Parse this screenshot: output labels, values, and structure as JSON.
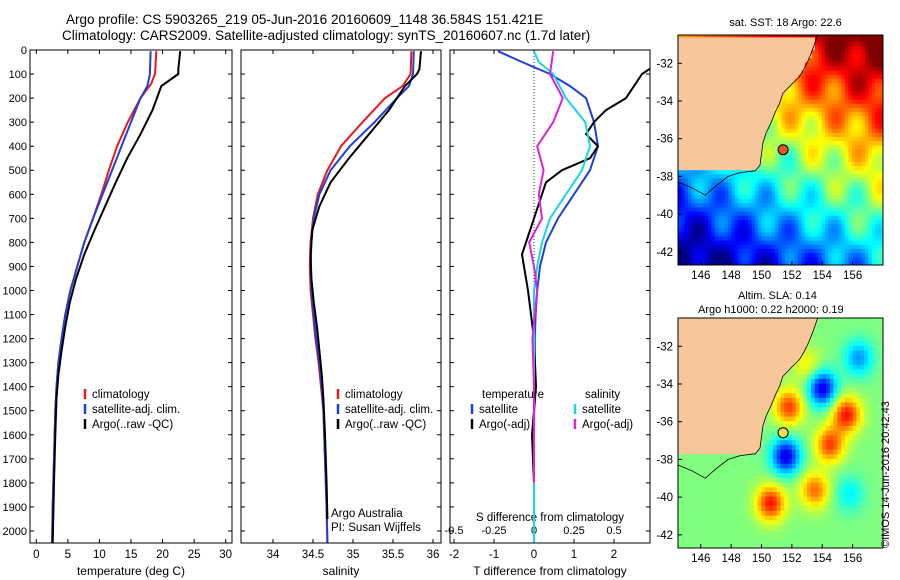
{
  "header": {
    "line1": "Argo profile: CS 5903265_219 05-Jun-2016 20160609_1148 36.584S 151.421E",
    "line2": "Climatology: CARS2009. Satellite-adjusted climatology: synTS_20160607.nc (1.7d later)"
  },
  "colors": {
    "climatology": "#e41a1c",
    "satellite": "#1f3fd8",
    "argo": "#000000",
    "salinity_satellite": "#17d8e0",
    "salinity_argo": "#e020e0",
    "land": "#f7c79b"
  },
  "chart_data": [
    {
      "type": "line",
      "id": "temperature",
      "xlabel": "temperature (deg C)",
      "ylabel": "",
      "xlim": [
        -1,
        31
      ],
      "ylim": [
        2050,
        0
      ],
      "xticks": [
        "0",
        "5",
        "10",
        "15",
        "20",
        "25",
        "30"
      ],
      "yticks": [
        "0",
        "100",
        "200",
        "300",
        "400",
        "500",
        "600",
        "700",
        "800",
        "900",
        "1000",
        "1100",
        "1200",
        "1300",
        "1400",
        "1500",
        "1600",
        "1700",
        "1800",
        "1900",
        "2000"
      ],
      "legend": [
        "climatology",
        "satellite-adj. clim.",
        "Argo(..raw -QC)"
      ],
      "series": [
        {
          "name": "climatology",
          "color_key": "climatology",
          "x": [
            19.0,
            18.8,
            18.2,
            16.5,
            14.5,
            12.8,
            11.5,
            10.3,
            9.0,
            7.6,
            6.5,
            5.4,
            4.6,
            4.0,
            3.5,
            3.2,
            3.0,
            2.8,
            2.6,
            2.5
          ],
          "y": [
            5,
            100,
            140,
            200,
            300,
            400,
            500,
            600,
            700,
            800,
            900,
            1000,
            1100,
            1200,
            1300,
            1400,
            1500,
            1700,
            1900,
            2050
          ]
        },
        {
          "name": "satellite-adj. clim.",
          "color_key": "satellite",
          "x": [
            18.1,
            18.0,
            17.6,
            16.5,
            15.0,
            13.5,
            12.0,
            10.5,
            9.0,
            7.6,
            6.5,
            5.4,
            4.6,
            4.0,
            3.5,
            3.2,
            3.0,
            2.8,
            2.6,
            2.5
          ],
          "y": [
            5,
            100,
            150,
            200,
            300,
            400,
            500,
            600,
            700,
            800,
            900,
            1000,
            1100,
            1200,
            1300,
            1400,
            1500,
            1700,
            1900,
            2050
          ]
        },
        {
          "name": "Argo(..raw -QC)",
          "color_key": "argo",
          "x": [
            22.8,
            22.5,
            22.5,
            19.8,
            18.4,
            16.5,
            14.4,
            12.6,
            10.9,
            9.2,
            7.6,
            6.3,
            5.3,
            4.6,
            4.0,
            3.5,
            3.2,
            3.0,
            2.8,
            2.6
          ],
          "y": [
            5,
            80,
            100,
            150,
            250,
            350,
            450,
            550,
            650,
            750,
            850,
            950,
            1050,
            1150,
            1250,
            1350,
            1450,
            1600,
            1800,
            2050
          ]
        }
      ]
    },
    {
      "type": "line",
      "id": "salinity",
      "xlabel": "salinity",
      "ylabel": "",
      "xlim": [
        33.6,
        36.1
      ],
      "ylim": [
        2050,
        0
      ],
      "xticks": [
        "34",
        "34.5",
        "35",
        "35.5",
        "36"
      ],
      "legend": [
        "climatology",
        "satellite-adj. clim.",
        "Argo(..raw -QC)"
      ],
      "annotation": [
        "Argo Australia",
        "PI: Susan Wijffels"
      ],
      "series": [
        {
          "name": "climatology",
          "color_key": "climatology",
          "x": [
            35.73,
            35.72,
            35.62,
            35.4,
            35.12,
            34.85,
            34.68,
            34.56,
            34.5,
            34.47,
            34.46,
            34.47,
            34.5,
            34.53,
            34.57,
            34.6,
            34.63,
            34.65,
            34.67,
            34.68
          ],
          "y": [
            5,
            100,
            150,
            200,
            300,
            400,
            500,
            600,
            700,
            800,
            900,
            1000,
            1100,
            1200,
            1300,
            1400,
            1500,
            1700,
            1900,
            2050
          ]
        },
        {
          "name": "satellite-adj. clim.",
          "color_key": "satellite",
          "x": [
            35.76,
            35.75,
            35.7,
            35.55,
            35.27,
            34.96,
            34.72,
            34.58,
            34.51,
            34.48,
            34.47,
            34.48,
            34.51,
            34.54,
            34.58,
            34.61,
            34.63,
            34.65,
            34.67,
            34.68
          ],
          "y": [
            5,
            100,
            150,
            200,
            300,
            400,
            500,
            600,
            700,
            800,
            900,
            1000,
            1100,
            1200,
            1300,
            1400,
            1500,
            1700,
            1900,
            2050
          ]
        },
        {
          "name": "Argo(..raw -QC)",
          "color_key": "argo",
          "x": [
            35.85,
            35.83,
            35.8,
            35.65,
            35.45,
            35.2,
            34.95,
            34.72,
            34.58,
            34.49,
            34.47,
            34.48,
            34.51,
            34.55,
            34.58,
            34.61,
            34.63,
            34.65,
            34.67,
            34.68
          ],
          "y": [
            5,
            80,
            100,
            150,
            250,
            350,
            450,
            550,
            650,
            750,
            850,
            950,
            1050,
            1150,
            1250,
            1350,
            1450,
            1600,
            1800,
            1950
          ]
        }
      ]
    },
    {
      "type": "line",
      "id": "differences",
      "xlabel": "T difference from climatology",
      "top_axis_label": "S difference from climatology",
      "xlim": [
        -2.1,
        2.9
      ],
      "ylim": [
        2050,
        0
      ],
      "xticks": [
        "-2",
        "-1",
        "0",
        "1",
        "2"
      ],
      "sticks": [
        "-0.5",
        "-0.25",
        "0",
        "0.25",
        "0.5"
      ],
      "legend_groups": [
        {
          "title": "temperature",
          "items": [
            "satellite",
            "Argo(-adj)"
          ]
        },
        {
          "title": "salinity",
          "items": [
            "satellite",
            "Argo(-adj)"
          ]
        }
      ],
      "series": [
        {
          "name": "temperature satellite",
          "color_key": "satellite",
          "x": [
            -0.9,
            -0.3,
            0.4,
            0.9,
            1.3,
            1.5,
            1.6,
            1.4,
            1.0,
            0.6,
            0.3,
            0.15,
            0.08,
            0.04,
            0.02,
            0.01,
            0.0,
            0.0,
            0.0
          ],
          "y": [
            5,
            50,
            100,
            150,
            200,
            300,
            400,
            500,
            600,
            700,
            800,
            900,
            1000,
            1100,
            1200,
            1400,
            1600,
            1800,
            2050
          ]
        },
        {
          "name": "temperature Argo(-adj)",
          "color_key": "argo",
          "x": [
            3.6,
            2.7,
            2.3,
            1.8,
            1.5,
            1.3,
            1.6,
            1.4,
            0.7,
            0.3,
            0.1,
            -0.1,
            -0.3,
            -0.15,
            0.0,
            0.05,
            -0.05,
            0.0,
            0.0
          ],
          "y": [
            0,
            100,
            200,
            250,
            300,
            350,
            400,
            450,
            500,
            550,
            650,
            750,
            850,
            1000,
            1200,
            1400,
            1600,
            1800,
            2000
          ]
        },
        {
          "name": "salinity satellite",
          "color_key": "salinity_satellite",
          "x": [
            0.0,
            0.03,
            0.12,
            0.2,
            0.32,
            0.35,
            0.3,
            0.2,
            0.1,
            0.05,
            0.02,
            0.0,
            0.0,
            0.0,
            0.0
          ],
          "y": [
            5,
            50,
            100,
            200,
            300,
            400,
            500,
            600,
            700,
            800,
            900,
            1000,
            1200,
            1600,
            2050
          ]
        },
        {
          "name": "salinity Argo(-adj)",
          "color_key": "salinity_argo",
          "x": [
            0.12,
            0.1,
            0.18,
            0.12,
            0.02,
            0.06,
            0.03,
            0.05,
            -0.03,
            0.0,
            0.02,
            -0.01,
            0.0,
            0.0
          ],
          "y": [
            5,
            100,
            200,
            300,
            400,
            500,
            600,
            700,
            800,
            900,
            1000,
            1200,
            1400,
            1800
          ]
        }
      ]
    },
    {
      "type": "heatmap",
      "id": "sst_map",
      "title": "sat. SST: 18 Argo: 22.6",
      "xticks": [
        "146",
        "148",
        "150",
        "152",
        "154",
        "156"
      ],
      "yticks": [
        "-32",
        "-34",
        "-36",
        "-38",
        "-40",
        "-42"
      ],
      "xlim": [
        144.5,
        158
      ],
      "ylim": [
        -42.7,
        -30.5
      ],
      "argo_position": {
        "lon": 151.421,
        "lat": -36.584
      }
    },
    {
      "type": "heatmap",
      "id": "sla_map",
      "title_line1": "Altim. SLA: 0.14",
      "title_line2": "Argo h1000: 0.22 h2000: 0.19",
      "xticks": [
        "146",
        "148",
        "150",
        "152",
        "154",
        "156"
      ],
      "yticks": [
        "-32",
        "-34",
        "-36",
        "-38",
        "-40",
        "-42"
      ],
      "xlim": [
        144.5,
        158
      ],
      "ylim": [
        -42.7,
        -30.5
      ],
      "argo_position": {
        "lon": 151.421,
        "lat": -36.584
      }
    }
  ],
  "footer": {
    "stamp": "©IMOS 14-Jun-2016 20:42:43"
  }
}
